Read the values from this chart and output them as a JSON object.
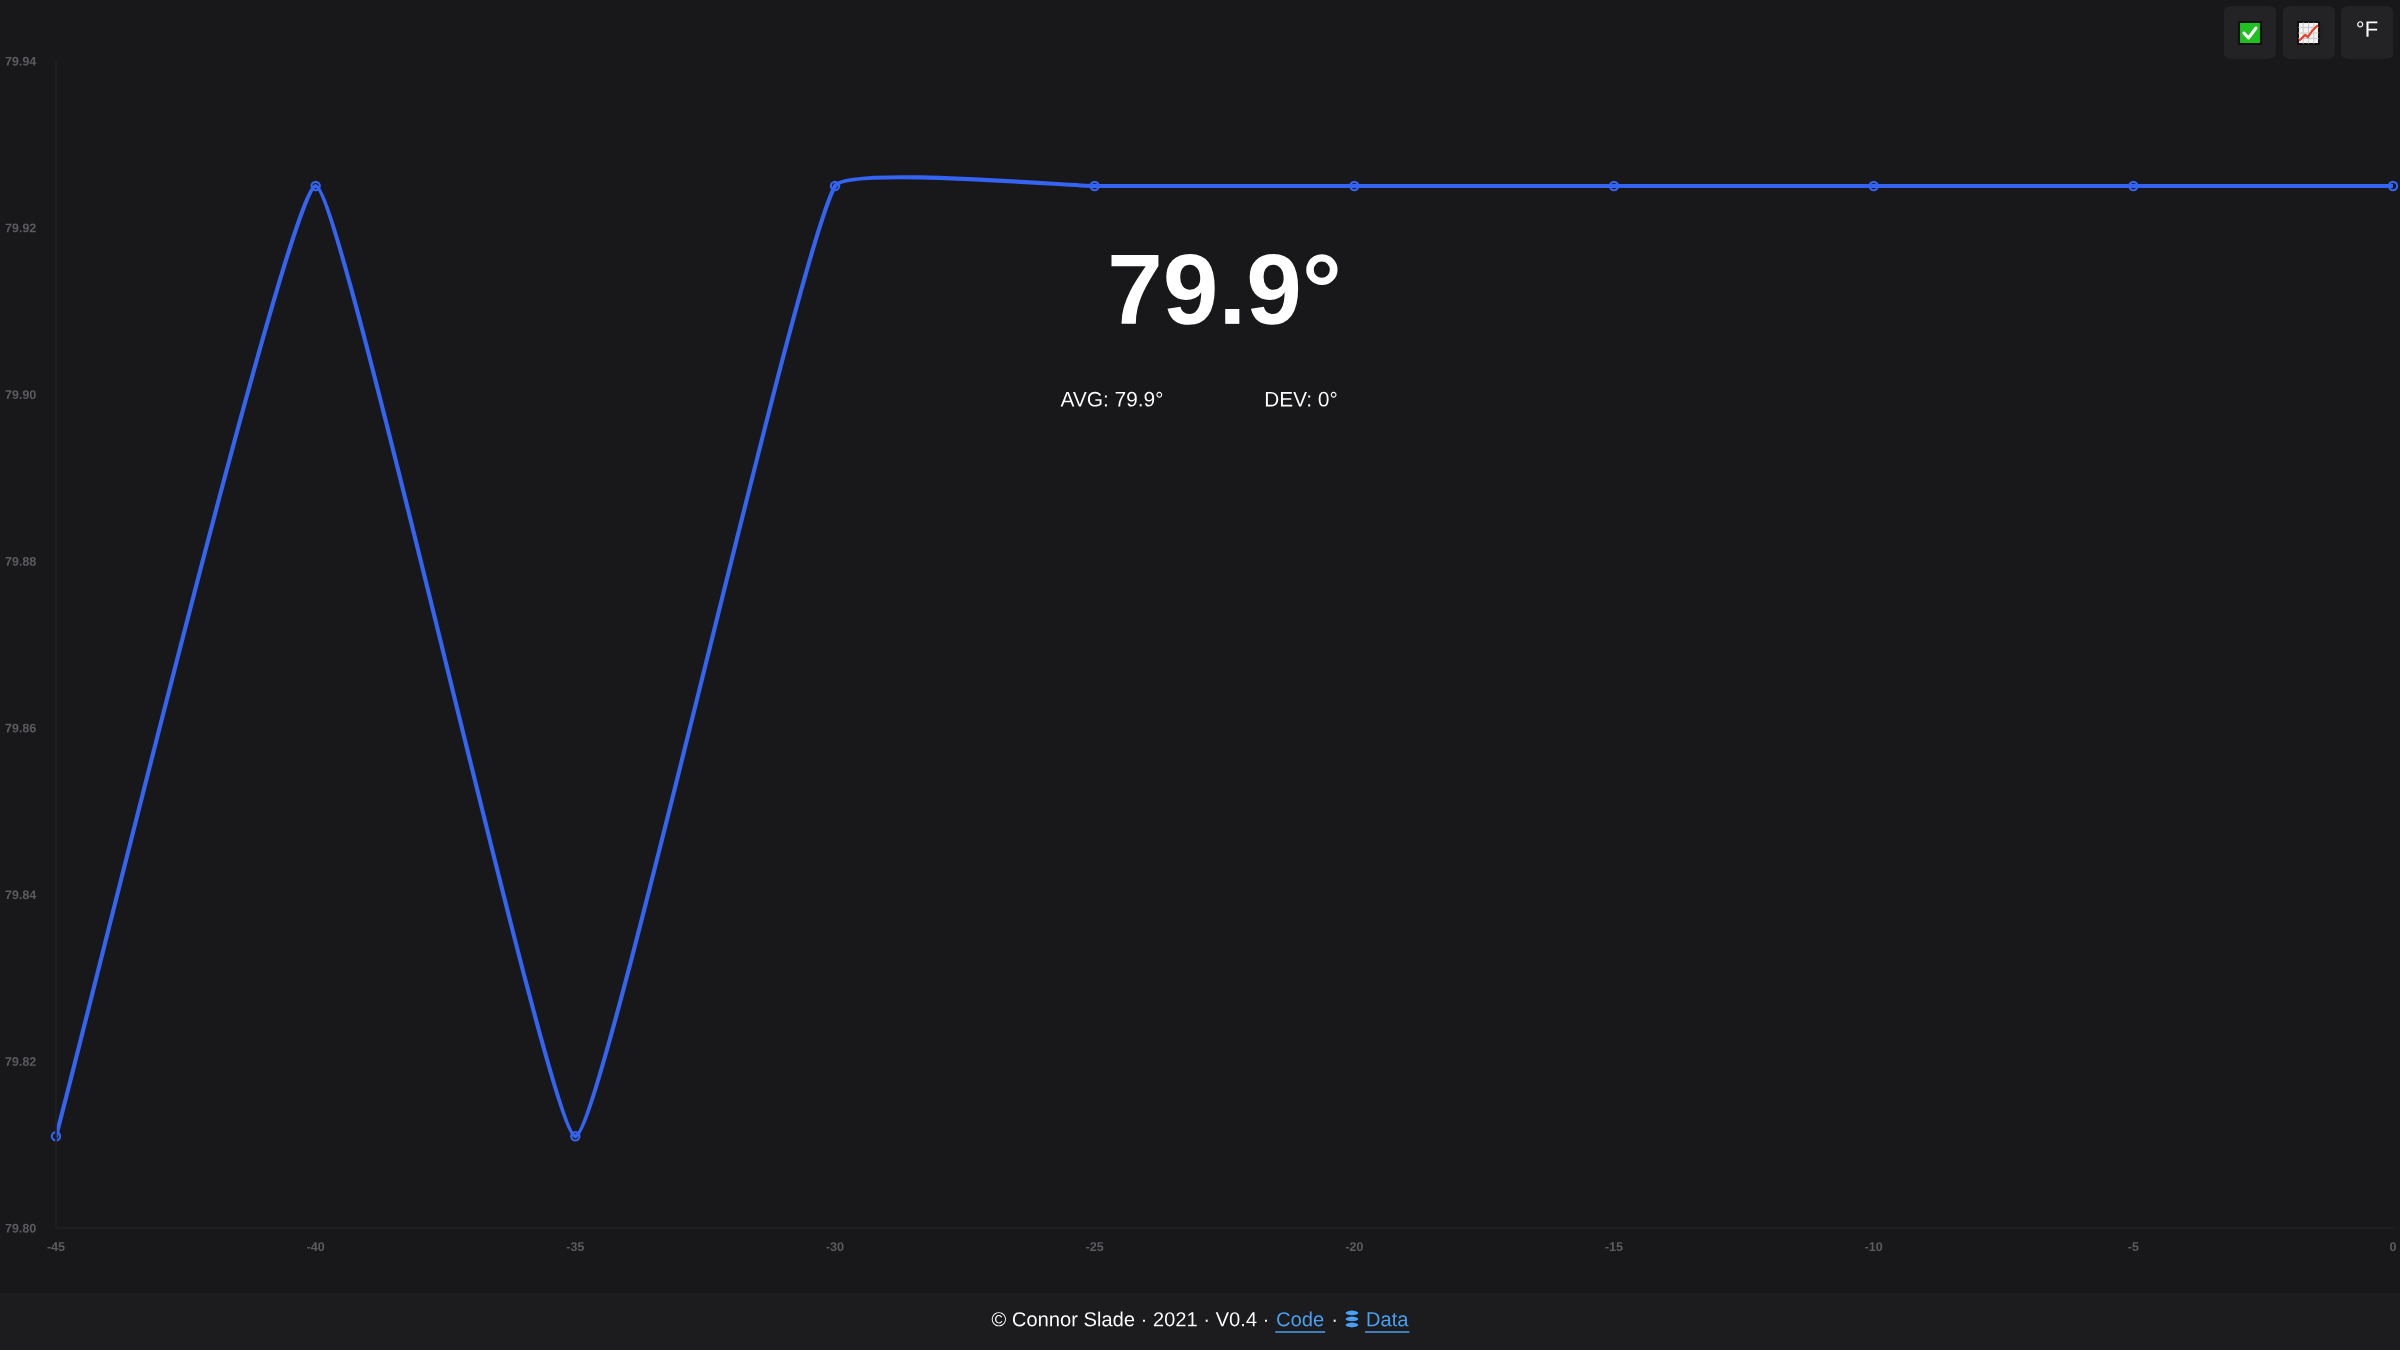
{
  "chart_data": {
    "type": "line",
    "x": [
      -45,
      -40,
      -35,
      -30,
      -25,
      -20,
      -15,
      -10,
      -5,
      0
    ],
    "series": [
      {
        "color": "#3563f2",
        "values": [
          79.811,
          79.925,
          79.811,
          79.925,
          79.925,
          79.925,
          79.925,
          79.925,
          79.925,
          79.925
        ]
      }
    ],
    "xlim": [
      -45,
      0
    ],
    "xticks": [
      -45,
      -40,
      -35,
      -30,
      -25,
      -20,
      -15,
      -10,
      -5,
      0
    ],
    "ylim": [
      79.8,
      79.94
    ],
    "yticks": [
      {
        "value": 79.8,
        "label": "79.80"
      },
      79.82,
      79.84,
      79.86,
      79.88,
      {
        "value": 79.9,
        "label": "79.90"
      },
      79.92,
      79.94
    ],
    "marker": "circle",
    "line_style": "solid",
    "annotations": [
      "79.9°",
      "AVG: 79.9°",
      "DEV: 0°",
      "°F",
      "© Connor Slade · 2021 · V0.4 ·",
      "Code",
      "·",
      "Data"
    ]
  }
}
